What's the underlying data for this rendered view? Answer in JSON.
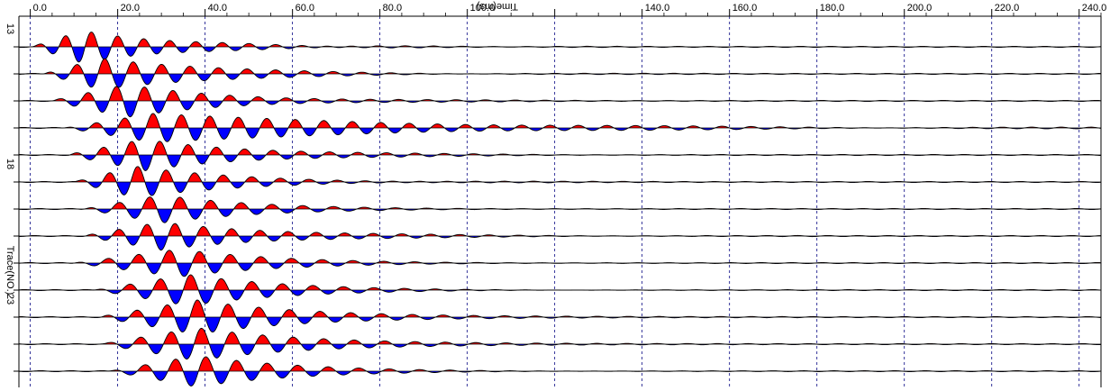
{
  "chart_data": {
    "type": "seismic-wiggle",
    "xlabel": "Time(ms)",
    "ylabel": "Trace(NO.)",
    "xlim": [
      -2.6,
      245.0
    ],
    "x_ticks": [
      0,
      20,
      40,
      60,
      80,
      100,
      120,
      140,
      160,
      180,
      200,
      220,
      240
    ],
    "x_tick_labels": [
      "0.0",
      "20.0",
      "40.0",
      "60.0",
      "80.0",
      "100.0",
      "",
      "140.0",
      "160.0",
      "180.0",
      "200.0",
      "220.0",
      "240.0"
    ],
    "grid": "vertical dashed at x ticks",
    "trace_numbers": [
      13,
      14,
      15,
      16,
      17,
      18,
      19,
      20,
      21,
      22,
      23,
      24,
      25
    ],
    "trace_tick_labels": [
      {
        "trace": 13,
        "label": "13"
      },
      {
        "trace": 18,
        "label": "18"
      },
      {
        "trace": 23,
        "label": "23"
      }
    ],
    "fill_positive_color": "#ff0000",
    "fill_negative_color": "#0000ff",
    "line_color": "#000000",
    "traces": [
      {
        "trace": 13,
        "onset_ms": 0.5,
        "period_ms": 6.0,
        "peak_ms": 12,
        "amplitude": 0.95,
        "decay_ms": 22
      },
      {
        "trace": 14,
        "onset_ms": 2.5,
        "period_ms": 6.5,
        "peak_ms": 16,
        "amplitude": 0.95,
        "decay_ms": 26
      },
      {
        "trace": 15,
        "onset_ms": 5.0,
        "period_ms": 6.5,
        "peak_ms": 22,
        "amplitude": 0.95,
        "decay_ms": 24
      },
      {
        "trace": 16,
        "onset_ms": 7.0,
        "period_ms": 6.5,
        "peak_ms": 28,
        "amplitude": 0.85,
        "decay_ms": 55
      },
      {
        "trace": 17,
        "onset_ms": 8.5,
        "period_ms": 6.5,
        "peak_ms": 26,
        "amplitude": 0.95,
        "decay_ms": 25
      },
      {
        "trace": 18,
        "onset_ms": 10.0,
        "period_ms": 6.5,
        "peak_ms": 24,
        "amplitude": 0.9,
        "decay_ms": 24
      },
      {
        "trace": 19,
        "onset_ms": 11.5,
        "period_ms": 7.0,
        "peak_ms": 30,
        "amplitude": 0.85,
        "decay_ms": 24
      },
      {
        "trace": 20,
        "onset_ms": 12.0,
        "period_ms": 6.5,
        "peak_ms": 30,
        "amplitude": 0.85,
        "decay_ms": 26
      },
      {
        "trace": 21,
        "onset_ms": 9.0,
        "period_ms": 7.0,
        "peak_ms": 34,
        "amplitude": 0.85,
        "decay_ms": 25
      },
      {
        "trace": 22,
        "onset_ms": 14.0,
        "period_ms": 7.0,
        "peak_ms": 36,
        "amplitude": 0.95,
        "decay_ms": 25
      },
      {
        "trace": 23,
        "onset_ms": 15.5,
        "period_ms": 7.0,
        "peak_ms": 38,
        "amplitude": 1.0,
        "decay_ms": 25
      },
      {
        "trace": 24,
        "onset_ms": 16.5,
        "period_ms": 7.0,
        "peak_ms": 38,
        "amplitude": 0.95,
        "decay_ms": 25
      },
      {
        "trace": 25,
        "onset_ms": 17.5,
        "period_ms": 7.0,
        "peak_ms": 38,
        "amplitude": 0.95,
        "decay_ms": 25
      }
    ]
  }
}
